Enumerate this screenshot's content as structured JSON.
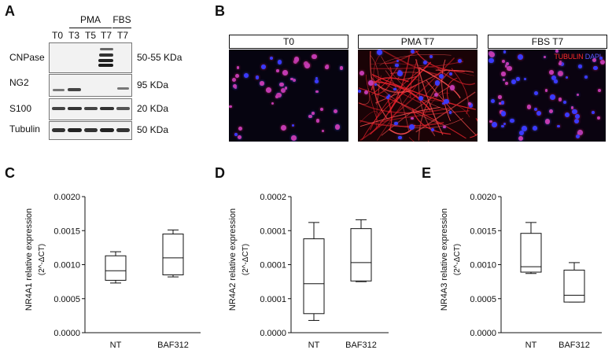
{
  "panels": {
    "A": "A",
    "B": "B",
    "C": "C",
    "D": "D",
    "E": "E"
  },
  "blot": {
    "group_pma": "PMA",
    "group_fbs": "FBS",
    "lanes": [
      "T0",
      "T3",
      "T5",
      "T7",
      "T7"
    ],
    "rows": [
      {
        "label": "CNPase",
        "size": "50-55 KDa"
      },
      {
        "label": "NG2",
        "size": "95 KDa"
      },
      {
        "label": "S100",
        "size": "20 KDa"
      },
      {
        "label": "Tubulin",
        "size": "50 KDa"
      }
    ]
  },
  "micrographs": {
    "titles": [
      "T0",
      "PMA T7",
      "FBS T7"
    ],
    "legend_red": "TUBULIN",
    "legend_blue": "DAPI",
    "colors": {
      "red": "#e0202a",
      "blue": "#3a3aff",
      "background": "#050308"
    }
  },
  "chart_data": [
    {
      "type": "box",
      "panel": "C",
      "ylabel": "NR4A1 relative expression",
      "ylabel_unit": "(2^-ΔCT)",
      "ylim": [
        0,
        0.002
      ],
      "yticks": [
        "0.0000",
        "0.0005",
        "0.0010",
        "0.0015",
        "0.0020"
      ],
      "categories": [
        "NT",
        "BAF312"
      ],
      "boxes": [
        {
          "min": 0.00073,
          "q1": 0.00077,
          "median": 0.00091,
          "q3": 0.00113,
          "max": 0.00119
        },
        {
          "min": 0.00082,
          "q1": 0.00085,
          "median": 0.0011,
          "q3": 0.00145,
          "max": 0.00151
        }
      ]
    },
    {
      "type": "box",
      "panel": "D",
      "ylabel": "NR4A2 relative expression",
      "ylabel_unit": "(2^-ΔCT)",
      "ylim": [
        0,
        0.0002
      ],
      "yticks": [
        "0.0000",
        "0.0001",
        "0.0001",
        "0.0001",
        "0.0002"
      ],
      "categories": [
        "NT",
        "BAF312"
      ],
      "boxes": [
        {
          "min": 1.8e-05,
          "q1": 2.8e-05,
          "median": 7.2e-05,
          "q3": 0.000138,
          "max": 0.000162
        },
        {
          "min": 7.5e-05,
          "q1": 7.6e-05,
          "median": 0.000103,
          "q3": 0.000153,
          "max": 0.000166
        }
      ]
    },
    {
      "type": "box",
      "panel": "E",
      "ylabel": "NR4A3 relative expression",
      "ylabel_unit": "(2^-ΔCT)",
      "ylim": [
        0,
        0.002
      ],
      "yticks": [
        "0.0000",
        "0.0005",
        "0.0010",
        "0.0015",
        "0.0020"
      ],
      "categories": [
        "NT",
        "BAF312"
      ],
      "boxes": [
        {
          "min": 0.00087,
          "q1": 0.00089,
          "median": 0.00097,
          "q3": 0.00146,
          "max": 0.00162
        },
        {
          "min": 0.00045,
          "q1": 0.00045,
          "median": 0.00055,
          "q3": 0.00092,
          "max": 0.00103
        }
      ]
    }
  ]
}
